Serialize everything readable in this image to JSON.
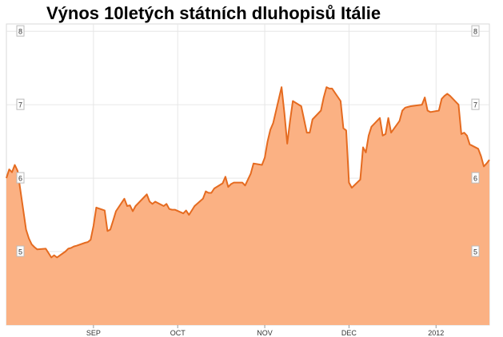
{
  "chart_data": {
    "type": "area",
    "title": "Výnos 10letých státních dluhopisů Itálie",
    "xlabel": "",
    "ylabel": "",
    "ylim": [
      4,
      8.1
    ],
    "xlim": [
      "2011-08-01",
      "2012-01-20"
    ],
    "x_ticks": [
      {
        "label": "SEP",
        "date": "2011-09-01"
      },
      {
        "label": "OCT",
        "date": "2011-10-01"
      },
      {
        "label": "NOV",
        "date": "2011-11-01"
      },
      {
        "label": "DEC",
        "date": "2011-12-01"
      },
      {
        "label": "2012",
        "date": "2012-01-01"
      }
    ],
    "y_ticks": [
      {
        "label": "8",
        "value": 8
      },
      {
        "label": "7",
        "value": 7
      },
      {
        "label": "6",
        "value": 6
      },
      {
        "label": "5",
        "value": 5
      }
    ],
    "grid": true,
    "colors": {
      "fill": "#fbb183",
      "line": "#e56b20",
      "grid": "#e6e6e6"
    },
    "series": [
      {
        "x": [
          "2011-08-01",
          "2011-08-02",
          "2011-08-03",
          "2011-08-04",
          "2011-08-05",
          "2011-08-08",
          "2011-08-09",
          "2011-08-10",
          "2011-08-11",
          "2011-08-12",
          "2011-08-15",
          "2011-08-16",
          "2011-08-17",
          "2011-08-18",
          "2011-08-19",
          "2011-08-22",
          "2011-08-23",
          "2011-08-24",
          "2011-08-25",
          "2011-08-26",
          "2011-08-29",
          "2011-08-30",
          "2011-08-31",
          "2011-09-01",
          "2011-09-02",
          "2011-09-05",
          "2011-09-06",
          "2011-09-07",
          "2011-09-08",
          "2011-09-09",
          "2011-09-12",
          "2011-09-13",
          "2011-09-14",
          "2011-09-15",
          "2011-09-16",
          "2011-09-19",
          "2011-09-20",
          "2011-09-21",
          "2011-09-22",
          "2011-09-23",
          "2011-09-26",
          "2011-09-27",
          "2011-09-28",
          "2011-09-29",
          "2011-09-30",
          "2011-10-03",
          "2011-10-04",
          "2011-10-05",
          "2011-10-06",
          "2011-10-07",
          "2011-10-10",
          "2011-10-11",
          "2011-10-12",
          "2011-10-13",
          "2011-10-14",
          "2011-10-17",
          "2011-10-18",
          "2011-10-19",
          "2011-10-20",
          "2011-10-21",
          "2011-10-24",
          "2011-10-25",
          "2011-10-26",
          "2011-10-27",
          "2011-10-28",
          "2011-10-31",
          "2011-11-01",
          "2011-11-02",
          "2011-11-03",
          "2011-11-04",
          "2011-11-07",
          "2011-11-08",
          "2011-11-09",
          "2011-11-10",
          "2011-11-11",
          "2011-11-14",
          "2011-11-15",
          "2011-11-16",
          "2011-11-17",
          "2011-11-18",
          "2011-11-21",
          "2011-11-22",
          "2011-11-23",
          "2011-11-24",
          "2011-11-25",
          "2011-11-28",
          "2011-11-29",
          "2011-11-30",
          "2011-12-01",
          "2011-12-02",
          "2011-12-05",
          "2011-12-06",
          "2011-12-07",
          "2011-12-08",
          "2011-12-09",
          "2011-12-12",
          "2011-12-13",
          "2011-12-14",
          "2011-12-15",
          "2011-12-16",
          "2011-12-19",
          "2011-12-20",
          "2011-12-21",
          "2011-12-22",
          "2011-12-23",
          "2011-12-27",
          "2011-12-28",
          "2011-12-29",
          "2011-12-30",
          "2012-01-02",
          "2012-01-03",
          "2012-01-04",
          "2012-01-05",
          "2012-01-06",
          "2012-01-09",
          "2012-01-10",
          "2012-01-11",
          "2012-01-12",
          "2012-01-13",
          "2012-01-16",
          "2012-01-17",
          "2012-01-18",
          "2012-01-19",
          "2012-01-20"
        ],
        "y": [
          6.0,
          6.12,
          6.08,
          6.18,
          6.1,
          5.3,
          5.18,
          5.1,
          5.06,
          5.03,
          5.04,
          4.98,
          4.92,
          4.95,
          4.92,
          5.0,
          5.04,
          5.05,
          5.07,
          5.08,
          5.12,
          5.13,
          5.16,
          5.35,
          5.6,
          5.56,
          5.28,
          5.3,
          5.42,
          5.55,
          5.72,
          5.62,
          5.63,
          5.55,
          5.62,
          5.74,
          5.78,
          5.68,
          5.65,
          5.68,
          5.62,
          5.65,
          5.58,
          5.57,
          5.57,
          5.52,
          5.56,
          5.5,
          5.56,
          5.62,
          5.72,
          5.82,
          5.8,
          5.8,
          5.86,
          5.93,
          6.02,
          5.88,
          5.92,
          5.94,
          5.94,
          5.9,
          5.98,
          6.06,
          6.2,
          6.18,
          6.28,
          6.5,
          6.66,
          6.75,
          7.24,
          6.88,
          6.47,
          6.78,
          7.05,
          6.98,
          6.8,
          6.62,
          6.62,
          6.8,
          6.92,
          7.1,
          7.24,
          7.22,
          7.22,
          7.05,
          6.68,
          6.65,
          5.94,
          5.87,
          5.98,
          6.42,
          6.35,
          6.58,
          6.7,
          6.82,
          6.58,
          6.6,
          6.82,
          6.62,
          6.78,
          6.92,
          6.96,
          6.97,
          6.98,
          7.0,
          7.1,
          6.92,
          6.9,
          6.92,
          7.08,
          7.12,
          7.15,
          7.12,
          7.0,
          6.6,
          6.62,
          6.58,
          6.46,
          6.4,
          6.3,
          6.16,
          6.2,
          6.25
        ]
      }
    ]
  }
}
